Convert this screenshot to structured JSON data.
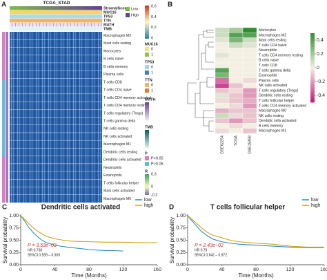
{
  "panel_a": {
    "panel_label": "A",
    "title": "TCGA_STAD",
    "annotation_rows": [
      "StromalScore",
      "MUC16",
      "TP53",
      "TTN",
      "MATH",
      "TMB"
    ],
    "rows": [
      "Macrophages M2",
      "Mast cells resting",
      "Monocytes",
      "B cells naive",
      "B cells memory",
      "Plasma cells",
      "T cells CD8",
      "T cells CD4 naive",
      "T cells CD4 memory activated",
      "T cells CD4 memory resting",
      "T cells regulatory (Tregs)",
      "T cells gamma delta",
      "NK cells resting",
      "NK cells activated",
      "Macrophages M1",
      "Dendritic cells resting",
      "Dendritic cells activated",
      "Neutrophils",
      "Eosinophils",
      "T cells follicular helper",
      "Mast cells activated",
      "Macrophages M0"
    ],
    "score_legend": [
      {
        "label": "Low",
        "color": "#7bc043"
      },
      {
        "label": "High",
        "color": "#6a3d9a"
      }
    ],
    "scale_ticks": [
      0.6,
      0.4,
      0.2,
      0
    ],
    "legends": [
      {
        "title": "MUC16",
        "items": [
          {
            "label": "0",
            "color": "#f6e27f"
          },
          {
            "label": "1",
            "color": "#8dc63f"
          }
        ]
      },
      {
        "title": "TP53",
        "items": [
          {
            "label": "0",
            "color": "#9fd8e8"
          },
          {
            "label": "1",
            "color": "#3f7fbf"
          }
        ]
      },
      {
        "title": "TTN",
        "items": [
          {
            "label": "0",
            "color": "#f6b26b"
          },
          {
            "label": "1",
            "color": "#e07b39"
          }
        ]
      }
    ],
    "math_title": "MATH",
    "tmb_title": "TMB",
    "p_legend": {
      "title": "P",
      "items": [
        {
          "label": "P<0.05",
          "color": "#e377c2"
        },
        {
          "label": "P>0.05",
          "color": "#5bc0de"
        }
      ]
    },
    "r_legend": {
      "title": "R",
      "ticks": [
        0.3,
        0,
        -0.2
      ]
    }
  },
  "chart_data": [
    {
      "type": "heatmap",
      "panel_label": "B",
      "rows": [
        "Monocytes",
        "Macrophages M2",
        "Mast cells resting",
        "T cells CD4 naive",
        "Neutrophils",
        "T cells CD4 memory resting",
        "B cells naive",
        "T cells CD8",
        "T cells gamma delta",
        "Eosinophils",
        "Plasma cells",
        "NK cells activated",
        "T cells regulatory (Tregs)",
        "Dendritic cells resting",
        "T cells follicular helper",
        "T cells CD4 memory activated",
        "Macrophages M0",
        "NK cells resting",
        "Dendritic cells activated",
        "B cells memory",
        "Macrophages M1"
      ],
      "columns": [
        "GSE62254",
        "TCGA",
        "GSE15459"
      ],
      "values": [
        [
          0.1,
          0.2,
          0.5
        ],
        [
          0.1,
          0.4,
          0.4
        ],
        [
          0.05,
          0.3,
          0.1
        ],
        [
          0,
          0.1,
          0.05
        ],
        [
          0,
          0,
          0
        ],
        [
          0.05,
          0,
          0
        ],
        [
          0,
          0,
          0
        ],
        [
          0,
          0,
          0
        ],
        [
          0.4,
          0,
          0
        ],
        [
          0.3,
          0,
          0
        ],
        [
          -0.3,
          0,
          -0.05
        ],
        [
          -0.4,
          -0.1,
          0
        ],
        [
          -0.1,
          -0.05,
          -0.2
        ],
        [
          0.05,
          -0.1,
          -0.2
        ],
        [
          -0.05,
          -0.1,
          -0.15
        ],
        [
          0,
          -0.05,
          -0.2
        ],
        [
          -0.15,
          -0.1,
          -0.1
        ],
        [
          0.1,
          -0.05,
          -0.1
        ],
        [
          -0.1,
          -0.2,
          -0.1
        ],
        [
          0,
          -0.05,
          0
        ],
        [
          -0.05,
          0,
          -0.1
        ]
      ],
      "zlim": [
        -0.5,
        0.5
      ],
      "zticks": [
        0.4,
        0.2,
        0,
        -0.2,
        -0.4
      ],
      "colors": [
        "#c2187a",
        "#f3efe2",
        "#2f8f2f"
      ]
    },
    {
      "type": "line",
      "panel_label": "C",
      "title": "Dendritic cells activated",
      "x_label": "Time (Months)",
      "y_label": "Survival probability",
      "xlim": [
        0,
        160
      ],
      "xticks": [
        0,
        40,
        80,
        120,
        160
      ],
      "ylim": [
        0,
        1
      ],
      "yticks": [
        {
          "value": 0,
          "label": "0.00"
        },
        {
          "value": 0.25,
          "label": "0.25"
        },
        {
          "value": 0.5,
          "label": "0.50"
        },
        {
          "value": 0.75,
          "label": "0.75"
        },
        {
          "value": 1,
          "label": "1.00"
        }
      ],
      "series": [
        {
          "name": "low",
          "color": "#2b8cc4",
          "x": [
            0,
            5,
            10,
            15,
            20,
            25,
            30,
            40,
            50,
            60,
            70,
            80,
            90,
            100,
            110,
            120
          ],
          "values": [
            1,
            0.88,
            0.75,
            0.65,
            0.57,
            0.5,
            0.45,
            0.4,
            0.37,
            0.35,
            0.33,
            0.31,
            0.3,
            0.29,
            0.29,
            0.28
          ]
        },
        {
          "name": "high",
          "color": "#d4a017",
          "x": [
            0,
            5,
            10,
            15,
            20,
            25,
            30,
            40,
            50,
            60,
            80,
            100,
            120,
            140,
            160
          ],
          "values": [
            1,
            0.92,
            0.83,
            0.75,
            0.68,
            0.63,
            0.58,
            0.53,
            0.5,
            0.48,
            0.47,
            0.46,
            0.46,
            0.45,
            0.45
          ]
        }
      ],
      "annotations": [
        "P = 3.53e−03",
        "HR 0.738",
        "95%CI 0.599 – 0.909"
      ]
    },
    {
      "type": "line",
      "panel_label": "D",
      "title": "T cells follicular helper",
      "x_label": "Time (Months)",
      "y_label": "Survival probability",
      "xlim": [
        0,
        160
      ],
      "xticks": [
        0,
        40,
        80,
        120,
        160
      ],
      "ylim": [
        0,
        1
      ],
      "yticks": [
        {
          "value": 0,
          "label": "0.00"
        },
        {
          "value": 0.25,
          "label": "0.25"
        },
        {
          "value": 0.5,
          "label": "0.50"
        },
        {
          "value": 0.75,
          "label": "0.75"
        },
        {
          "value": 1,
          "label": "1.00"
        }
      ],
      "series": [
        {
          "name": "low",
          "color": "#2b8cc4",
          "x": [
            0,
            5,
            10,
            15,
            20,
            25,
            30,
            40,
            50,
            60,
            80,
            100,
            120,
            140,
            160
          ],
          "values": [
            1,
            0.9,
            0.8,
            0.7,
            0.63,
            0.57,
            0.52,
            0.47,
            0.44,
            0.42,
            0.4,
            0.38,
            0.36,
            0.35,
            0.35
          ]
        },
        {
          "name": "high",
          "color": "#d4a017",
          "x": [
            0,
            5,
            10,
            15,
            20,
            25,
            30,
            40,
            50,
            60,
            80,
            100,
            120,
            140,
            160
          ],
          "values": [
            1,
            0.93,
            0.85,
            0.77,
            0.7,
            0.64,
            0.6,
            0.55,
            0.5,
            0.47,
            0.44,
            0.42,
            0.38,
            0.36,
            0.36
          ]
        }
      ],
      "annotations": [
        "P = 2.43e−02",
        "HR 0.79",
        "95%CI 0.642 – 0.972"
      ]
    }
  ]
}
